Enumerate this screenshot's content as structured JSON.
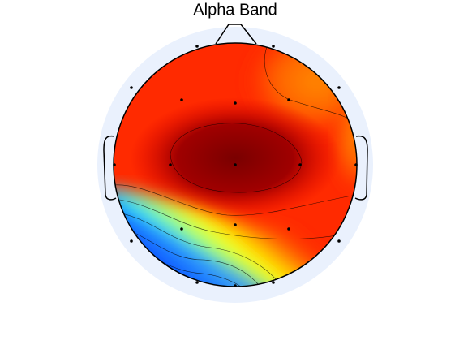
{
  "chart_data": {
    "type": "topomap",
    "title": "Alpha Band"
  }
}
